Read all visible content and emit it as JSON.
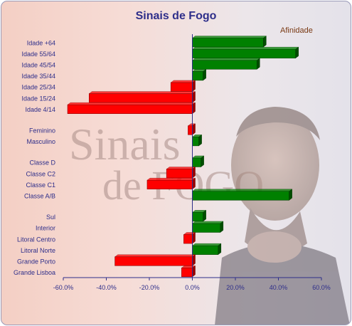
{
  "chart_data": {
    "type": "bar",
    "orientation": "horizontal",
    "title": "Sinais de Fogo",
    "series": [
      {
        "name": "Afinidade",
        "color_positive": "#008000",
        "color_negative": "#ff0000"
      }
    ],
    "categories": [
      "Idade +64",
      "Idade 55/64",
      "Idade 45/54",
      "Idade 35/44",
      "Idade 25/34",
      "Idade 15/24",
      "Idade 4/14",
      "Feminino",
      "Masculino",
      "Classe D",
      "Classe C2",
      "Classe C1",
      "Classe A/B",
      "Sul",
      "Interior",
      "Litoral Centro",
      "Litoral Norte",
      "Grande Porto",
      "Grande Lisboa"
    ],
    "groups": [
      {
        "categories": [
          "Idade +64",
          "Idade 55/64",
          "Idade 45/54",
          "Idade 35/44",
          "Idade 25/34",
          "Idade 15/24",
          "Idade 4/14"
        ],
        "values": [
          33,
          48,
          30,
          5,
          -10,
          -48,
          -58
        ]
      },
      {
        "categories": [
          "Feminino",
          "Masculino"
        ],
        "values": [
          -2,
          3
        ]
      },
      {
        "categories": [
          "Classe D",
          "Classe C2",
          "Classe C1",
          "Classe A/B"
        ],
        "values": [
          4,
          -12,
          -21,
          45
        ]
      },
      {
        "categories": [
          "Sul",
          "Interior",
          "Litoral Centro",
          "Litoral Norte",
          "Grande Porto",
          "Grande Lisboa"
        ],
        "values": [
          5,
          13,
          -4,
          12,
          -36,
          -5
        ]
      }
    ],
    "xlim": [
      -60,
      60
    ],
    "xticks": [
      "-60.0%",
      "-40.0%",
      "-20.0%",
      "0.0%",
      "20.0%",
      "40.0%",
      "60.0%"
    ],
    "xtick_values": [
      -60,
      -40,
      -20,
      0,
      20,
      40,
      60
    ],
    "legend": "top-right",
    "grid": false,
    "axis_color": "#2e2e8a"
  }
}
